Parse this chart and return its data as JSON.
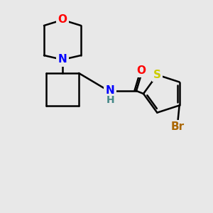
{
  "background_color": "#e8e8e8",
  "atom_colors": {
    "O": "#ff0000",
    "N": "#0000ff",
    "S": "#cccc00",
    "Br": "#aa6600",
    "C": "#000000",
    "H": "#448888"
  },
  "bond_color": "#000000",
  "figsize": [
    3.0,
    3.0
  ],
  "dpi": 100,
  "lw": 1.8
}
